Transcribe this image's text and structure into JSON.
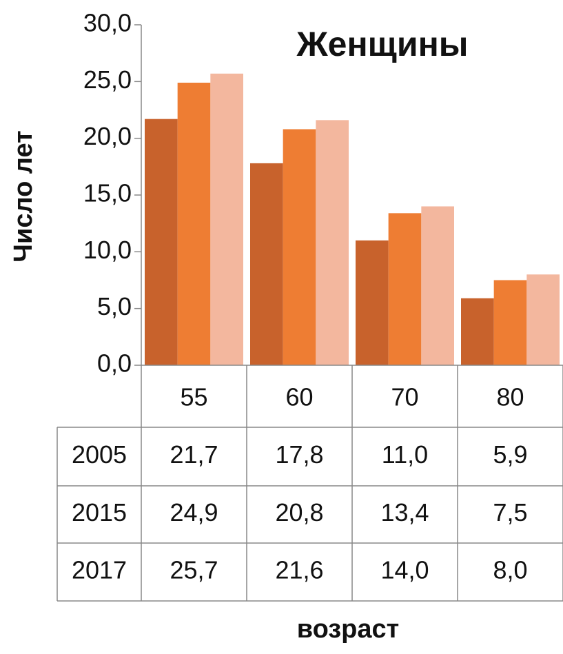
{
  "chart_data": {
    "type": "bar",
    "title": "Женщины",
    "y_label": "Число лет",
    "x_label": "возраст",
    "categories": [
      "55",
      "60",
      "70",
      "80"
    ],
    "series": [
      {
        "name": "2005",
        "color": "#c8622c",
        "values": [
          21.7,
          17.8,
          11.0,
          5.9
        ],
        "value_labels": [
          "21,7",
          "17,8",
          "11,0",
          "5,9"
        ]
      },
      {
        "name": "2015",
        "color": "#ee7d33",
        "values": [
          24.9,
          20.8,
          13.4,
          7.5
        ],
        "value_labels": [
          "24,9",
          "20,8",
          "13,4",
          "7,5"
        ]
      },
      {
        "name": "2017",
        "color": "#f3b79e",
        "values": [
          25.7,
          21.6,
          14.0,
          8.0
        ],
        "value_labels": [
          "25,7",
          "21,6",
          "14,0",
          "8,0"
        ]
      }
    ],
    "ylim": [
      0,
      30
    ],
    "yticks": [
      {
        "value": 0,
        "label": "0,0"
      },
      {
        "value": 5,
        "label": "5,0"
      },
      {
        "value": 10,
        "label": "10,0"
      },
      {
        "value": 15,
        "label": "15,0"
      },
      {
        "value": 20,
        "label": "20,0"
      },
      {
        "value": 25,
        "label": "25,0"
      },
      {
        "value": 30,
        "label": "30,0"
      }
    ],
    "grid": false
  }
}
